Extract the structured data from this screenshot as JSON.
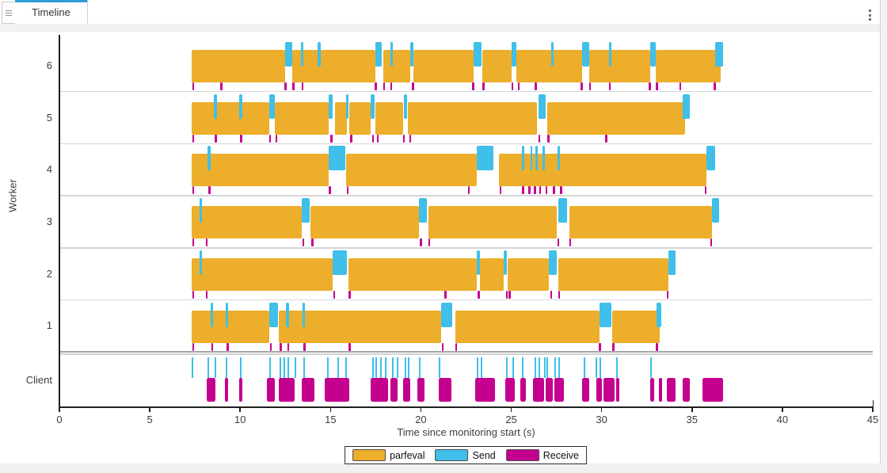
{
  "tab_bar": {
    "tab_label": "Timeline",
    "list_icon": "tab-list-icon",
    "menu_icon": "kebab-menu-icon"
  },
  "chart_data": {
    "type": "timeline",
    "xlabel": "Time since monitoring start (s)",
    "ylabel": "Worker",
    "xlim": [
      0,
      45
    ],
    "xticks": [
      0,
      5,
      10,
      15,
      20,
      25,
      30,
      35,
      40,
      45
    ],
    "grid": "row-separators",
    "legend_position": "bottom-center",
    "colors": {
      "parfeval": "#ECAE2B",
      "send": "#3FBFE9",
      "receive": "#C4008F",
      "axis": "#1f1f1f",
      "separator": "#d6d6d6",
      "tab_active": "#2e9ad8"
    },
    "legend": [
      {
        "label": "parfeval",
        "color": "#ECAE2B"
      },
      {
        "label": "Send",
        "color": "#3FBFE9"
      },
      {
        "label": "Receive",
        "color": "#C4008F"
      }
    ],
    "rows": [
      {
        "label": "6",
        "type": "worker",
        "parfeval": [
          [
            7.3,
            12.5
          ],
          [
            12.9,
            17.5
          ],
          [
            17.9,
            19.4
          ],
          [
            19.6,
            22.9
          ],
          [
            23.4,
            25.0
          ],
          [
            25.3,
            28.9
          ],
          [
            29.3,
            32.7
          ],
          [
            33.0,
            36.6
          ]
        ],
        "send": [
          [
            12.5,
            12.9
          ],
          [
            13.35,
            13.5
          ],
          [
            14.3,
            14.45
          ],
          [
            17.5,
            17.85
          ],
          [
            18.3,
            18.45
          ],
          [
            19.4,
            19.6
          ],
          [
            22.9,
            23.35
          ],
          [
            25.0,
            25.3
          ],
          [
            27.2,
            27.35
          ],
          [
            28.9,
            29.3
          ],
          [
            30.4,
            30.55
          ],
          [
            32.7,
            33.0
          ],
          [
            36.3,
            36.7
          ]
        ],
        "receive": [
          7.35,
          8.9,
          12.45,
          12.9,
          13.4,
          17.45,
          17.9,
          18.3,
          19.5,
          22.85,
          23.4,
          25.0,
          25.35,
          26.3,
          28.85,
          29.3,
          30.4,
          32.6,
          33.0,
          34.3,
          36.2
        ]
      },
      {
        "label": "5",
        "type": "worker",
        "parfeval": [
          [
            7.3,
            11.6
          ],
          [
            11.9,
            14.9
          ],
          [
            15.25,
            15.9
          ],
          [
            16.05,
            17.2
          ],
          [
            17.5,
            19.0
          ],
          [
            19.3,
            26.4
          ],
          [
            27.0,
            34.6
          ]
        ],
        "send": [
          [
            8.55,
            8.7
          ],
          [
            9.95,
            10.1
          ],
          [
            11.6,
            11.9
          ],
          [
            14.9,
            15.1
          ],
          [
            15.85,
            16.0
          ],
          [
            17.2,
            17.45
          ],
          [
            19.05,
            19.25
          ],
          [
            26.5,
            26.9
          ],
          [
            34.5,
            34.9
          ]
        ],
        "receive": [
          7.35,
          8.6,
          10.0,
          11.6,
          11.95,
          15.0,
          16.1,
          17.3,
          17.55,
          19.0,
          19.35,
          26.5,
          27.0,
          30.2
        ]
      },
      {
        "label": "4",
        "type": "worker",
        "parfeval": [
          [
            7.3,
            14.9
          ],
          [
            15.85,
            23.1
          ],
          [
            24.3,
            35.8
          ]
        ],
        "send": [
          [
            8.2,
            8.35
          ],
          [
            14.9,
            15.8
          ],
          [
            23.1,
            24.0
          ],
          [
            25.6,
            25.72
          ],
          [
            26.05,
            26.17
          ],
          [
            26.35,
            26.47
          ],
          [
            26.75,
            26.87
          ],
          [
            27.55,
            27.67
          ],
          [
            35.8,
            36.3
          ]
        ],
        "receive": [
          7.35,
          8.25,
          14.9,
          15.9,
          22.6,
          24.35,
          25.6,
          25.95,
          26.25,
          26.55,
          26.9,
          27.3,
          27.7,
          35.7
        ]
      },
      {
        "label": "3",
        "type": "worker",
        "parfeval": [
          [
            7.3,
            13.4
          ],
          [
            13.9,
            19.9
          ],
          [
            20.4,
            27.5
          ],
          [
            28.2,
            36.1
          ]
        ],
        "send": [
          [
            7.75,
            7.9
          ],
          [
            13.4,
            13.85
          ],
          [
            19.9,
            20.35
          ],
          [
            27.6,
            28.1
          ],
          [
            36.1,
            36.5
          ]
        ],
        "receive": [
          7.35,
          8.1,
          13.45,
          13.95,
          19.95,
          20.4,
          27.55,
          28.2,
          36.0
        ]
      },
      {
        "label": "2",
        "type": "worker",
        "parfeval": [
          [
            7.3,
            15.1
          ],
          [
            16.0,
            23.1
          ],
          [
            23.25,
            24.6
          ],
          [
            24.8,
            27.1
          ],
          [
            27.6,
            33.7
          ]
        ],
        "send": [
          [
            7.75,
            7.9
          ],
          [
            15.1,
            15.9
          ],
          [
            23.1,
            23.25
          ],
          [
            24.6,
            24.75
          ],
          [
            27.1,
            27.5
          ],
          [
            33.7,
            34.1
          ]
        ],
        "receive": [
          7.35,
          8.1,
          15.15,
          16.0,
          21.3,
          23.15,
          24.7,
          24.85,
          27.15,
          27.6,
          33.6
        ]
      },
      {
        "label": "1",
        "type": "worker",
        "parfeval": [
          [
            7.3,
            11.6
          ],
          [
            12.15,
            21.1
          ],
          [
            21.9,
            29.9
          ],
          [
            30.6,
            33.2
          ]
        ],
        "send": [
          [
            8.35,
            8.5
          ],
          [
            9.2,
            9.35
          ],
          [
            11.6,
            12.1
          ],
          [
            12.55,
            12.7
          ],
          [
            13.45,
            13.6
          ],
          [
            21.1,
            21.75
          ],
          [
            29.9,
            30.55
          ],
          [
            33.05,
            33.3
          ]
        ],
        "receive": [
          7.35,
          8.4,
          9.25,
          11.65,
          12.2,
          12.6,
          13.5,
          16.0,
          21.15,
          21.9,
          29.85,
          30.6,
          33.0
        ]
      },
      {
        "label": "Client",
        "type": "client",
        "send": [
          7.33,
          8.2,
          8.6,
          9.2,
          10.0,
          11.6,
          12.2,
          12.4,
          12.6,
          13.0,
          13.5,
          14.8,
          15.4,
          15.8,
          17.3,
          17.5,
          17.75,
          18.0,
          18.4,
          18.65,
          19.1,
          19.3,
          19.9,
          21.0,
          23.1,
          23.3,
          24.7,
          25.05,
          25.6,
          26.3,
          26.5,
          26.8,
          26.95,
          27.4,
          27.6,
          29.0,
          29.65,
          29.9,
          30.8,
          32.7
        ],
        "receive": [
          [
            8.15,
            8.65
          ],
          [
            9.15,
            9.35
          ],
          [
            9.95,
            10.1
          ],
          [
            11.5,
            11.9
          ],
          [
            12.15,
            13.0
          ],
          [
            13.4,
            14.1
          ],
          [
            14.7,
            16.05
          ],
          [
            17.2,
            18.2
          ],
          [
            18.3,
            18.7
          ],
          [
            19.0,
            19.4
          ],
          [
            19.8,
            20.2
          ],
          [
            21.0,
            21.7
          ],
          [
            23.0,
            24.1
          ],
          [
            24.65,
            25.2
          ],
          [
            25.5,
            25.8
          ],
          [
            26.2,
            26.8
          ],
          [
            26.9,
            27.3
          ],
          [
            27.4,
            27.9
          ],
          [
            28.9,
            29.3
          ],
          [
            29.7,
            30.0
          ],
          [
            30.1,
            30.7
          ],
          [
            30.8,
            31.0
          ],
          [
            32.7,
            32.9
          ],
          [
            33.15,
            33.35
          ],
          [
            33.6,
            34.1
          ],
          [
            34.5,
            34.9
          ],
          [
            35.6,
            36.7
          ]
        ]
      }
    ]
  }
}
